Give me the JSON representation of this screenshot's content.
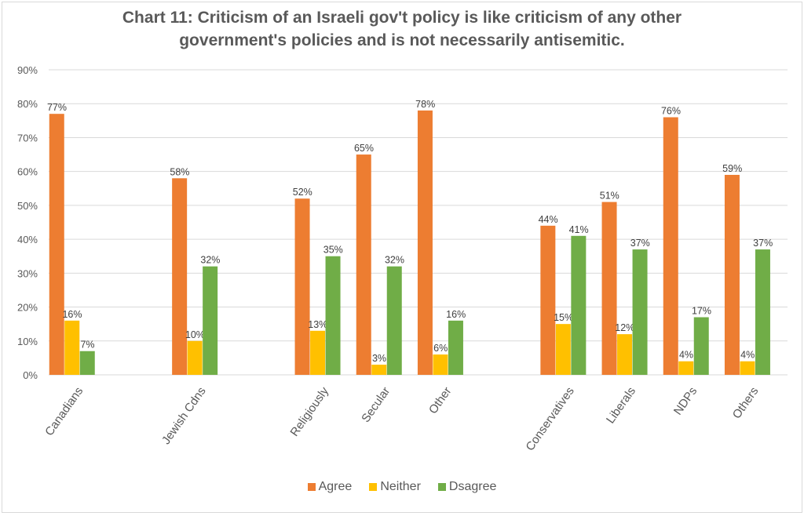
{
  "chart_data": {
    "type": "bar",
    "title_line1": "Chart 11: Criticism of an Israeli gov't policy is like criticism of any other",
    "title_line2": "government's policies and is not necessarily antisemitic.",
    "categories": [
      "Canadians",
      "Jewish Cdns",
      "Religiously",
      "Secular",
      "Other",
      "Conservatives",
      "Liberals",
      "NDPs",
      "Others"
    ],
    "category_slots": [
      0,
      2,
      4,
      5,
      6,
      8,
      9,
      10,
      11
    ],
    "total_slots": 12,
    "series": [
      {
        "name": "Agree",
        "color": "#ed7d31",
        "values": [
          77,
          58,
          52,
          65,
          78,
          44,
          51,
          76,
          59
        ]
      },
      {
        "name": "Neither",
        "color": "#ffc000",
        "values": [
          16,
          10,
          13,
          3,
          6,
          15,
          12,
          4,
          4
        ]
      },
      {
        "name": "Dsagree",
        "color": "#70ad47",
        "values": [
          7,
          32,
          35,
          32,
          16,
          41,
          37,
          17,
          37
        ]
      }
    ],
    "y_ticks": [
      "0%",
      "10%",
      "20%",
      "30%",
      "40%",
      "50%",
      "60%",
      "70%",
      "80%",
      "90%"
    ],
    "ylim": [
      0,
      90
    ],
    "xlabel": "",
    "ylabel": "",
    "grid": true,
    "legend_position": "bottom"
  },
  "legend": [
    {
      "label": "Agree",
      "color": "#ed7d31"
    },
    {
      "label": "Neither",
      "color": "#ffc000"
    },
    {
      "label": "Dsagree",
      "color": "#70ad47"
    }
  ]
}
